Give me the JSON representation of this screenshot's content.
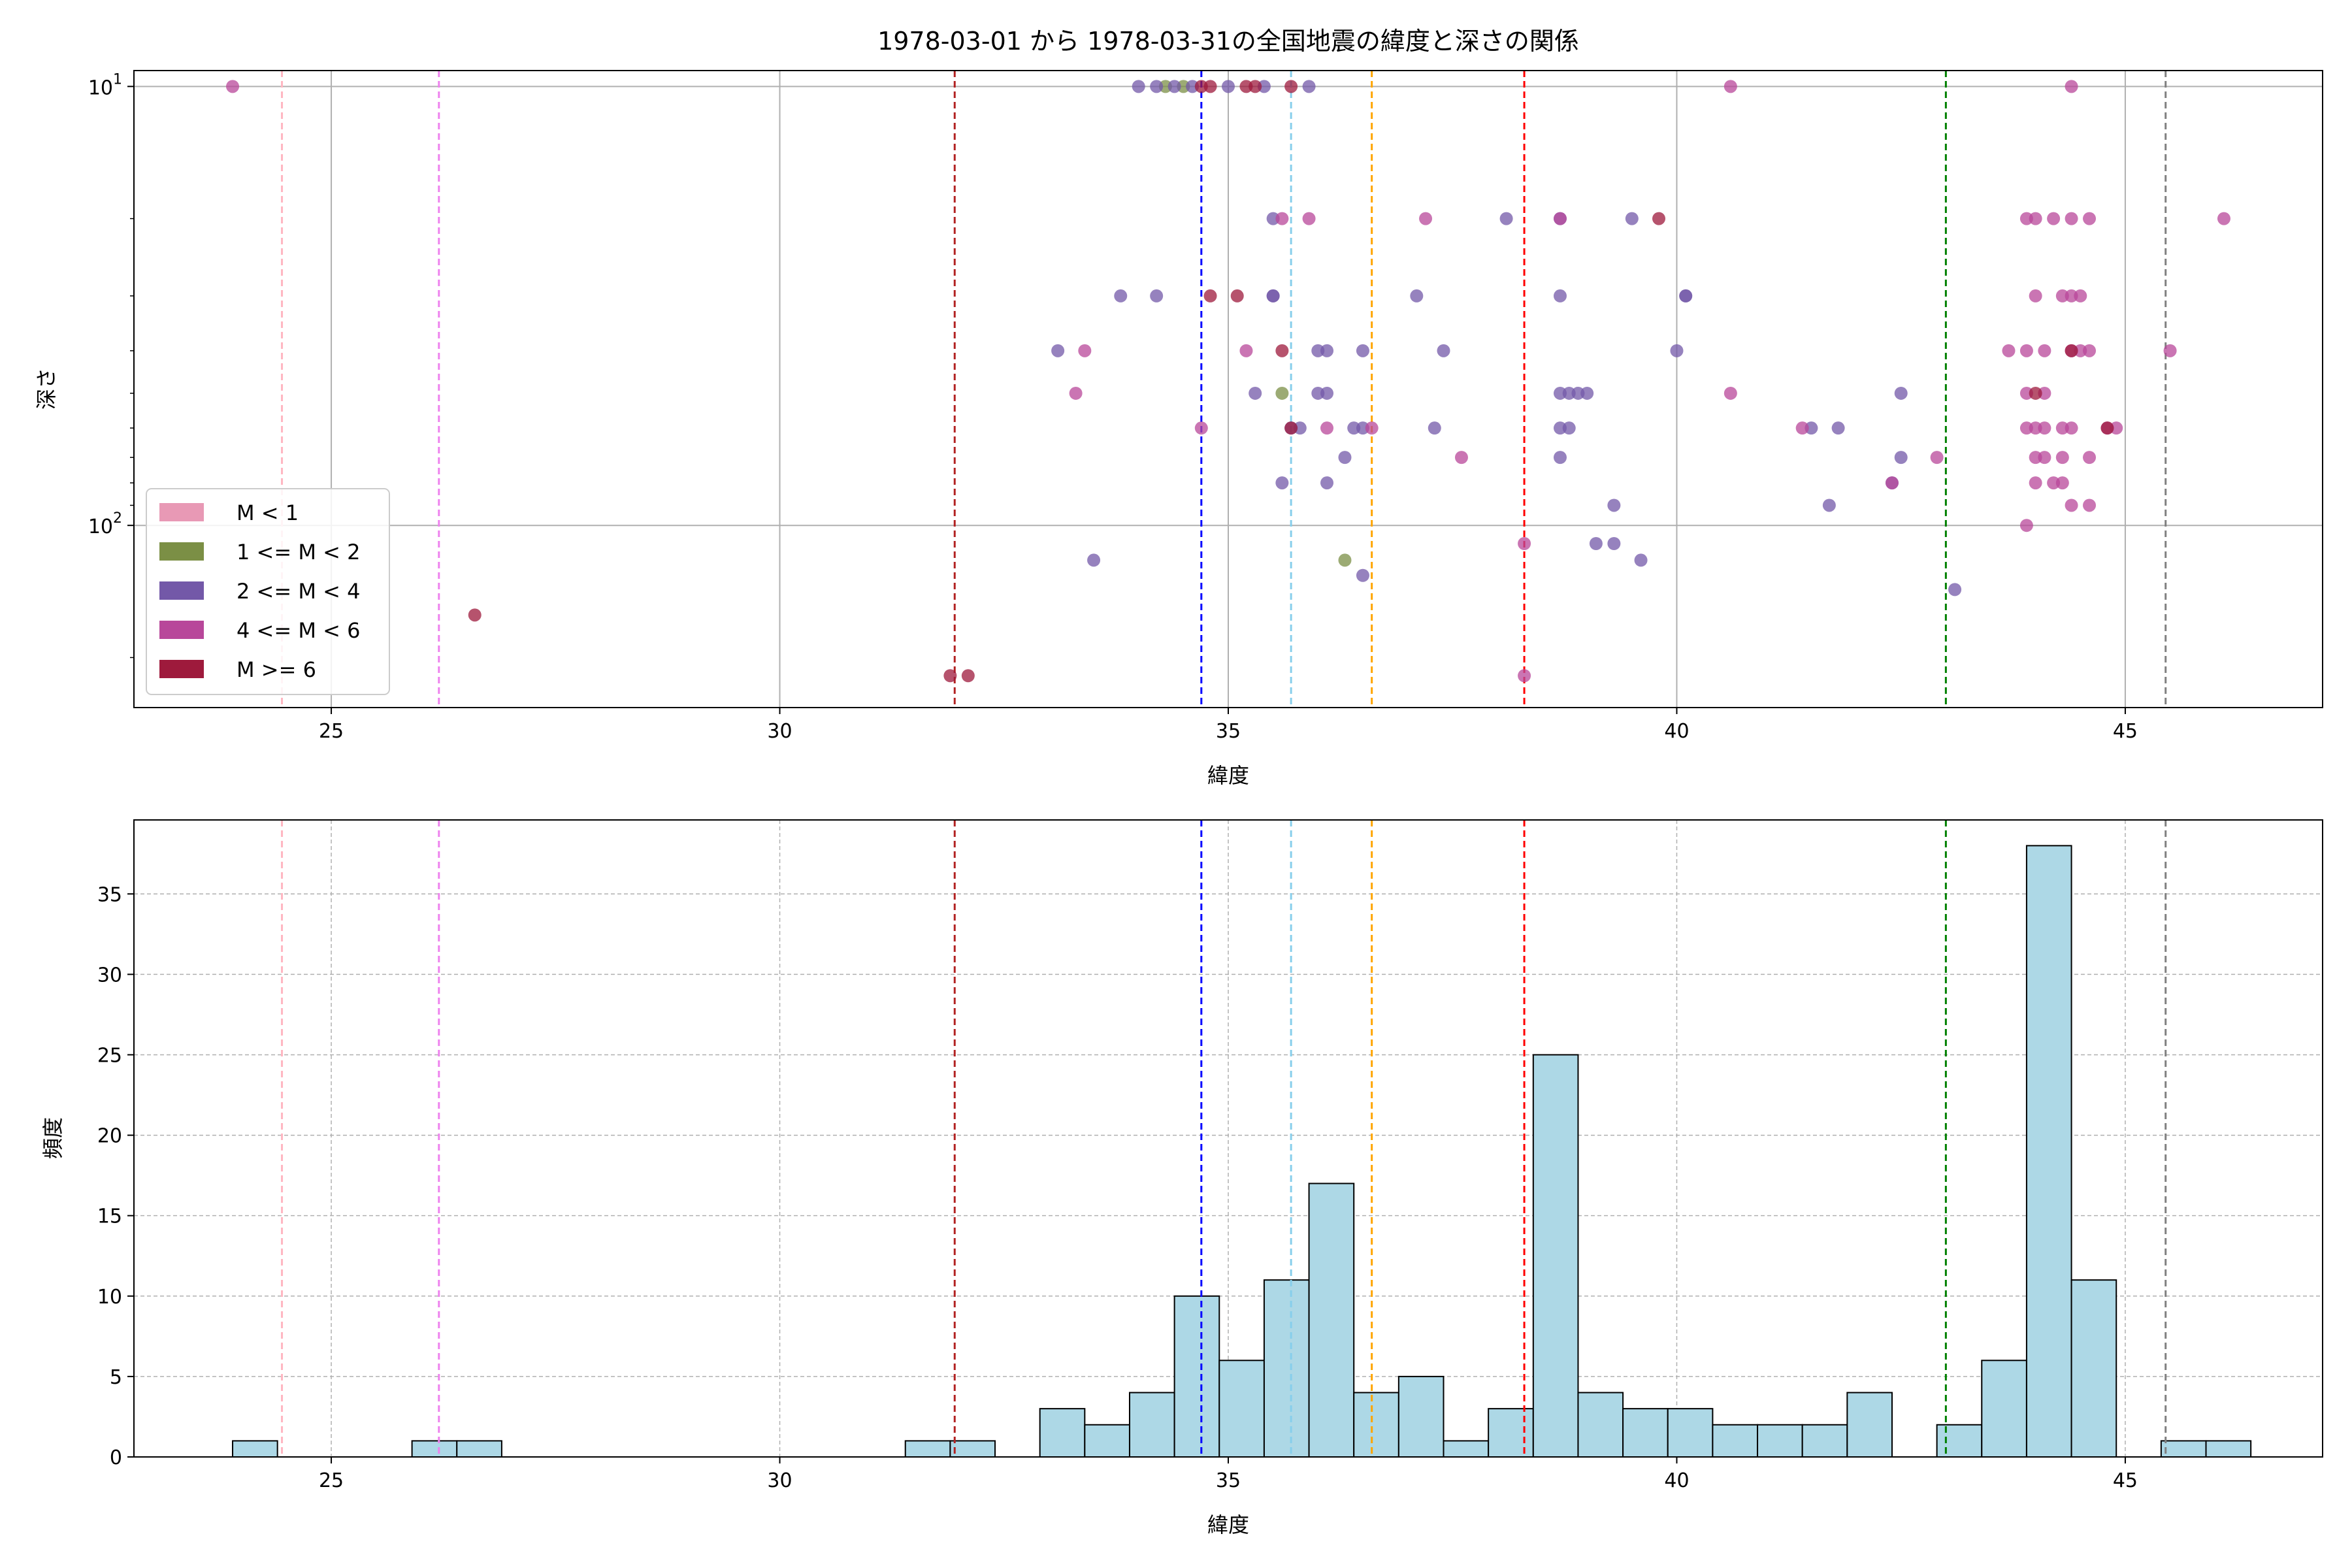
{
  "figure": {
    "title": "1978-03-01 から 1978-03-31の全国地震の緯度と深さの関係"
  },
  "chart_data": [
    {
      "type": "scatter",
      "xlabel": "緯度",
      "ylabel": "深さ",
      "xlim": [
        22.8,
        47.2
      ],
      "ylim": [
        260,
        9.2
      ],
      "y_scale": "log",
      "y_inverted": true,
      "x_ticks": [
        "25",
        "30",
        "35",
        "40",
        "45"
      ],
      "x_tick_values": [
        25,
        30,
        35,
        40,
        45
      ],
      "y_ticks": [
        {
          "value": 10,
          "base": "10",
          "exp": "1"
        },
        {
          "value": 100,
          "base": "10",
          "exp": "2"
        }
      ],
      "grid": true,
      "legend_position": "lower-left",
      "legend": [
        {
          "label": "M < 1",
          "color": "#e899b5"
        },
        {
          "label": "1 <= M < 2",
          "color": "#7b8f45"
        },
        {
          "label": "2 <= M < 4",
          "color": "#7358a8"
        },
        {
          "label": "4 <= M < 6",
          "color": "#b8479a"
        },
        {
          "label": "M >= 6",
          "color": "#9e1a3c"
        }
      ],
      "vlines": [
        {
          "x": 24.45,
          "color": "#ffb6c1"
        },
        {
          "x": 26.2,
          "color": "#ee82ee"
        },
        {
          "x": 31.95,
          "color": "#b22222"
        },
        {
          "x": 34.7,
          "color": "#0000ff"
        },
        {
          "x": 35.7,
          "color": "#87ceeb"
        },
        {
          "x": 36.6,
          "color": "#ffa500"
        },
        {
          "x": 38.3,
          "color": "#ff0000"
        },
        {
          "x": 43.0,
          "color": "#008000"
        },
        {
          "x": 45.45,
          "color": "#808080"
        }
      ],
      "series": [
        {
          "name": "1 <= M < 2",
          "color": "#7b8f45",
          "points": [
            [
              34.3,
              10
            ],
            [
              34.5,
              10
            ],
            [
              35.6,
              50
            ],
            [
              36.3,
              120
            ]
          ]
        },
        {
          "name": "2 <= M < 4",
          "color": "#7358a8",
          "points": [
            [
              34.0,
              10
            ],
            [
              34.2,
              10
            ],
            [
              34.4,
              10
            ],
            [
              34.6,
              10
            ],
            [
              35.0,
              10
            ],
            [
              35.4,
              10
            ],
            [
              35.9,
              10
            ],
            [
              35.5,
              20
            ],
            [
              35.5,
              30
            ],
            [
              33.8,
              30
            ],
            [
              34.2,
              30
            ],
            [
              35.5,
              30
            ],
            [
              33.1,
              40
            ],
            [
              36.0,
              40
            ],
            [
              36.1,
              40
            ],
            [
              36.5,
              40
            ],
            [
              35.3,
              50
            ],
            [
              35.8,
              60
            ],
            [
              36.0,
              50
            ],
            [
              36.1,
              50
            ],
            [
              35.6,
              80
            ],
            [
              36.1,
              80
            ],
            [
              36.3,
              70
            ],
            [
              36.5,
              60
            ],
            [
              35.7,
              60
            ],
            [
              36.4,
              60
            ],
            [
              33.5,
              120
            ],
            [
              36.5,
              130
            ],
            [
              37.1,
              30
            ],
            [
              37.4,
              40
            ],
            [
              37.3,
              60
            ],
            [
              38.1,
              20
            ],
            [
              38.7,
              20
            ],
            [
              38.7,
              30
            ],
            [
              38.7,
              50
            ],
            [
              38.8,
              50
            ],
            [
              38.7,
              60
            ],
            [
              38.8,
              60
            ],
            [
              38.7,
              70
            ],
            [
              38.9,
              50
            ],
            [
              39.0,
              50
            ],
            [
              39.1,
              110
            ],
            [
              39.3,
              110
            ],
            [
              39.3,
              90
            ],
            [
              39.6,
              120
            ],
            [
              39.5,
              20
            ],
            [
              40.1,
              30
            ],
            [
              40.1,
              30
            ],
            [
              40.0,
              40
            ],
            [
              41.5,
              60
            ],
            [
              41.8,
              60
            ],
            [
              41.7,
              90
            ],
            [
              42.4,
              80
            ],
            [
              42.5,
              50
            ],
            [
              42.5,
              70
            ],
            [
              43.1,
              140
            ]
          ]
        },
        {
          "name": "4 <= M < 6",
          "color": "#b8479a",
          "points": [
            [
              23.9,
              10
            ],
            [
              33.4,
              40
            ],
            [
              33.3,
              50
            ],
            [
              34.7,
              60
            ],
            [
              35.2,
              40
            ],
            [
              35.6,
              20
            ],
            [
              35.9,
              20
            ],
            [
              36.1,
              60
            ],
            [
              36.6,
              60
            ],
            [
              37.2,
              20
            ],
            [
              37.6,
              70
            ],
            [
              38.7,
              20
            ],
            [
              38.3,
              110
            ],
            [
              40.6,
              10
            ],
            [
              40.6,
              50
            ],
            [
              41.4,
              60
            ],
            [
              42.4,
              80
            ],
            [
              42.9,
              70
            ],
            [
              43.9,
              20
            ],
            [
              44.0,
              20
            ],
            [
              44.2,
              20
            ],
            [
              44.4,
              20
            ],
            [
              44.6,
              20
            ],
            [
              44.0,
              30
            ],
            [
              44.3,
              30
            ],
            [
              44.4,
              30
            ],
            [
              44.5,
              30
            ],
            [
              43.7,
              40
            ],
            [
              43.9,
              40
            ],
            [
              44.1,
              40
            ],
            [
              44.4,
              40
            ],
            [
              44.5,
              40
            ],
            [
              44.6,
              40
            ],
            [
              43.9,
              50
            ],
            [
              44.1,
              50
            ],
            [
              43.9,
              60
            ],
            [
              44.0,
              60
            ],
            [
              44.1,
              60
            ],
            [
              44.3,
              60
            ],
            [
              44.4,
              60
            ],
            [
              44.8,
              60
            ],
            [
              44.9,
              60
            ],
            [
              44.0,
              70
            ],
            [
              44.1,
              70
            ],
            [
              44.3,
              70
            ],
            [
              44.6,
              70
            ],
            [
              44.0,
              80
            ],
            [
              44.2,
              80
            ],
            [
              44.3,
              80
            ],
            [
              44.4,
              90
            ],
            [
              44.6,
              90
            ],
            [
              43.9,
              100
            ],
            [
              44.4,
              10
            ],
            [
              46.1,
              20
            ],
            [
              45.5,
              40
            ],
            [
              38.3,
              220
            ]
          ]
        },
        {
          "name": "M >= 6",
          "color": "#9e1a3c",
          "points": [
            [
              26.6,
              160
            ],
            [
              31.9,
              220
            ],
            [
              32.1,
              220
            ],
            [
              34.7,
              10
            ],
            [
              34.8,
              10
            ],
            [
              35.2,
              10
            ],
            [
              35.3,
              10
            ],
            [
              35.7,
              10
            ],
            [
              35.1,
              30
            ],
            [
              34.8,
              30
            ],
            [
              35.6,
              40
            ],
            [
              35.7,
              60
            ],
            [
              39.8,
              20
            ],
            [
              44.0,
              50
            ],
            [
              44.4,
              40
            ],
            [
              44.8,
              60
            ]
          ]
        }
      ]
    },
    {
      "type": "histogram",
      "xlabel": "緯度",
      "ylabel": "頻度",
      "xlim": [
        22.8,
        47.2
      ],
      "ylim": [
        0,
        39.6
      ],
      "x_ticks": [
        "25",
        "30",
        "35",
        "40",
        "45"
      ],
      "x_tick_values": [
        25,
        30,
        35,
        40,
        45
      ],
      "y_ticks": [
        "0",
        "5",
        "10",
        "15",
        "20",
        "25",
        "30",
        "35"
      ],
      "y_tick_values": [
        0,
        5,
        10,
        15,
        20,
        25,
        30,
        35
      ],
      "grid": true,
      "bar_color": "#add8e6",
      "bin_start": 23.9,
      "bin_width": 0.5,
      "counts": [
        1,
        0,
        0,
        0,
        1,
        1,
        0,
        0,
        0,
        0,
        0,
        0,
        0,
        0,
        0,
        1,
        1,
        0,
        3,
        2,
        4,
        10,
        6,
        11,
        17,
        4,
        5,
        1,
        3,
        25,
        4,
        3,
        3,
        2,
        2,
        2,
        4,
        0,
        2,
        6,
        38,
        11,
        0,
        1,
        1
      ],
      "vlines": [
        {
          "x": 24.45,
          "color": "#ffb6c1"
        },
        {
          "x": 26.2,
          "color": "#ee82ee"
        },
        {
          "x": 31.95,
          "color": "#b22222"
        },
        {
          "x": 34.7,
          "color": "#0000ff"
        },
        {
          "x": 35.7,
          "color": "#87ceeb"
        },
        {
          "x": 36.6,
          "color": "#ffa500"
        },
        {
          "x": 38.3,
          "color": "#ff0000"
        },
        {
          "x": 43.0,
          "color": "#008000"
        },
        {
          "x": 45.45,
          "color": "#808080"
        }
      ]
    }
  ]
}
